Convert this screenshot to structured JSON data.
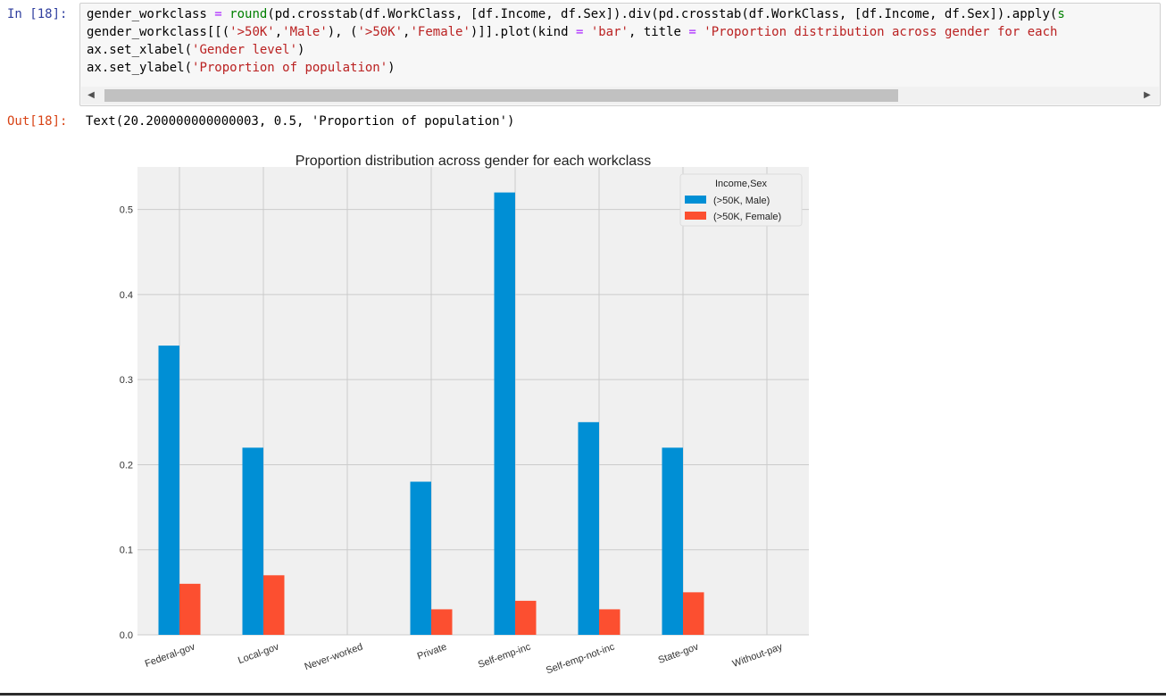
{
  "cell": {
    "in_prompt": "In [18]:",
    "out_prompt": "Out[18]:",
    "output_text": "Text(20.200000000000003, 0.5, 'Proportion of population')",
    "code_lines": [
      [
        {
          "t": "gender_workclass ",
          "c": ""
        },
        {
          "t": "=",
          "c": "o"
        },
        {
          "t": " ",
          "c": ""
        },
        {
          "t": "round",
          "c": "b"
        },
        {
          "t": "(pd.crosstab(df.WorkClass, [df.Income, df.Sex]).div(pd.crosstab(df.WorkClass, [df.Income, df.Sex]).apply(",
          "c": ""
        },
        {
          "t": "s",
          "c": "b"
        }
      ],
      [
        {
          "t": "gender_workclass[[(",
          "c": ""
        },
        {
          "t": "'>50K'",
          "c": "s"
        },
        {
          "t": ",",
          "c": ""
        },
        {
          "t": "'Male'",
          "c": "s"
        },
        {
          "t": "), (",
          "c": ""
        },
        {
          "t": "'>50K'",
          "c": "s"
        },
        {
          "t": ",",
          "c": ""
        },
        {
          "t": "'Female'",
          "c": "s"
        },
        {
          "t": ")]].plot(kind ",
          "c": ""
        },
        {
          "t": "=",
          "c": "o"
        },
        {
          "t": " ",
          "c": ""
        },
        {
          "t": "'bar'",
          "c": "s"
        },
        {
          "t": ", title ",
          "c": ""
        },
        {
          "t": "=",
          "c": "o"
        },
        {
          "t": " ",
          "c": ""
        },
        {
          "t": "'Proportion distribution across gender for each",
          "c": "s"
        }
      ],
      [
        {
          "t": "ax.set_xlabel(",
          "c": ""
        },
        {
          "t": "'Gender level'",
          "c": "s"
        },
        {
          "t": ")",
          "c": ""
        }
      ],
      [
        {
          "t": "ax.set_ylabel(",
          "c": ""
        },
        {
          "t": "'Proportion of population'",
          "c": "s"
        },
        {
          "t": ")",
          "c": ""
        }
      ]
    ]
  },
  "chart_data": {
    "type": "bar",
    "title": "Proportion distribution across gender for each workclass",
    "xlabel": "",
    "ylabel": "",
    "categories": [
      "Federal-gov",
      "Local-gov",
      "Never-worked",
      "Private",
      "Self-emp-inc",
      "Self-emp-not-inc",
      "State-gov",
      "Without-pay"
    ],
    "series": [
      {
        "name": "(>50K, Male)",
        "color": "#008fd5",
        "values": [
          0.34,
          0.22,
          0.0,
          0.18,
          0.52,
          0.25,
          0.22,
          0.0
        ]
      },
      {
        "name": "(>50K, Female)",
        "color": "#fc4f30",
        "values": [
          0.06,
          0.07,
          0.0,
          0.03,
          0.04,
          0.03,
          0.05,
          0.0
        ]
      }
    ],
    "ylim": [
      0,
      0.55
    ],
    "yticks": [
      "0.0",
      "0.1",
      "0.2",
      "0.3",
      "0.4",
      "0.5"
    ],
    "legend": {
      "title": "Income,Sex",
      "position": "top-right"
    },
    "grid": true,
    "style": {
      "background": "#f0f0f0",
      "grid_color": "#cbcbcb"
    }
  }
}
